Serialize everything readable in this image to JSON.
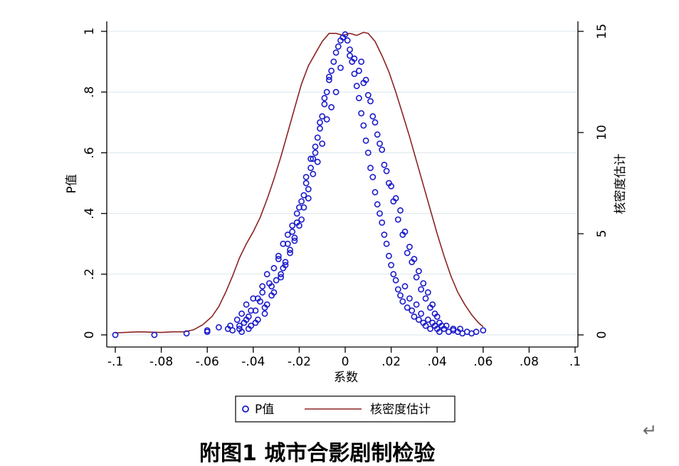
{
  "caption": "附图1  城市合影剧制检验",
  "return_mark": "↵",
  "chart_data": {
    "type": "scatter",
    "xlabel": "系数",
    "ylabel": "P值",
    "y2label": "核密度估计",
    "xlim": [
      -0.1,
      0.1
    ],
    "ylim": [
      0,
      1
    ],
    "y2lim": [
      0,
      15
    ],
    "x_ticks": [
      "-.1",
      "-.08",
      "-.06",
      "-.04",
      "-.02",
      "0",
      ".02",
      ".04",
      ".06",
      ".08",
      ".1"
    ],
    "y_ticks": [
      "0",
      ".2",
      ".4",
      ".6",
      ".8",
      "1"
    ],
    "y2_ticks": [
      "0",
      "5",
      "10",
      "15"
    ],
    "grid": true,
    "legend": {
      "position": "bottom",
      "entries": [
        "P值",
        "核密度估计"
      ]
    },
    "colors": {
      "scatter": "#1a1acc",
      "density": "#8b2323",
      "grid": "#dbe6ee"
    },
    "series": [
      {
        "name": "P值",
        "type": "scatter",
        "x": [
          -0.1,
          -0.083,
          -0.069,
          -0.06,
          -0.06,
          -0.055,
          -0.051,
          -0.05,
          -0.049,
          -0.047,
          -0.046,
          -0.045,
          -0.044,
          -0.043,
          -0.042,
          -0.041,
          -0.04,
          -0.039,
          -0.038,
          -0.037,
          -0.036,
          -0.035,
          -0.034,
          -0.033,
          -0.032,
          -0.031,
          -0.03,
          -0.029,
          -0.028,
          -0.027,
          -0.026,
          -0.025,
          -0.024,
          -0.023,
          -0.022,
          -0.021,
          -0.02,
          -0.019,
          -0.018,
          -0.017,
          -0.016,
          -0.015,
          -0.014,
          -0.013,
          -0.012,
          -0.011,
          -0.01,
          -0.009,
          -0.008,
          -0.007,
          -0.006,
          -0.005,
          -0.004,
          -0.003,
          -0.002,
          -0.001,
          0.0,
          0.001,
          0.002,
          0.003,
          0.004,
          0.005,
          0.006,
          0.007,
          0.008,
          0.009,
          0.01,
          0.011,
          0.012,
          0.013,
          0.014,
          0.015,
          0.016,
          0.017,
          0.018,
          0.019,
          0.02,
          0.021,
          0.022,
          0.023,
          0.024,
          0.025,
          0.026,
          0.027,
          0.028,
          0.029,
          0.03,
          0.031,
          0.032,
          0.033,
          0.034,
          0.035,
          0.036,
          0.037,
          0.038,
          0.039,
          0.04,
          0.041,
          0.043,
          0.045,
          0.047,
          0.049,
          0.051,
          0.053,
          0.055,
          0.057,
          0.06,
          -0.046,
          -0.043,
          -0.041,
          -0.038,
          -0.036,
          -0.034,
          -0.032,
          -0.029,
          -0.027,
          -0.025,
          -0.023,
          -0.021,
          -0.019,
          -0.017,
          -0.015,
          -0.013,
          -0.011,
          -0.009,
          -0.007,
          0.007,
          0.009,
          0.011,
          0.013,
          0.015,
          0.017,
          0.019,
          0.021,
          0.023,
          0.025,
          0.027,
          0.029,
          0.031,
          0.033,
          0.035,
          0.037,
          0.039,
          0.041,
          0.044,
          0.047,
          0.05,
          -0.045,
          -0.042,
          -0.039,
          -0.035,
          -0.031,
          -0.028,
          -0.026,
          -0.024,
          -0.022,
          -0.02,
          -0.018,
          -0.016,
          -0.014,
          -0.012,
          -0.01,
          -0.008,
          -0.006,
          -0.004,
          -0.002,
          0.002,
          0.004,
          0.006,
          0.008,
          0.01,
          0.012,
          0.014,
          0.016,
          0.018,
          0.02,
          0.022,
          0.024,
          0.026,
          0.028,
          0.03,
          0.032,
          0.034,
          0.036,
          0.038,
          0.04,
          0.042
        ],
        "y": [
          0.0,
          0.0,
          0.005,
          0.01,
          0.015,
          0.025,
          0.02,
          0.03,
          0.015,
          0.05,
          0.02,
          0.07,
          0.04,
          0.1,
          0.06,
          0.03,
          0.12,
          0.08,
          0.05,
          0.11,
          0.14,
          0.07,
          0.1,
          0.17,
          0.13,
          0.22,
          0.18,
          0.25,
          0.2,
          0.3,
          0.24,
          0.33,
          0.28,
          0.36,
          0.31,
          0.4,
          0.42,
          0.38,
          0.46,
          0.5,
          0.48,
          0.55,
          0.58,
          0.6,
          0.65,
          0.68,
          0.72,
          0.76,
          0.8,
          0.84,
          0.87,
          0.9,
          0.93,
          0.95,
          0.97,
          0.98,
          0.99,
          0.97,
          0.94,
          0.9,
          0.86,
          0.82,
          0.78,
          0.73,
          0.69,
          0.64,
          0.6,
          0.55,
          0.52,
          0.47,
          0.43,
          0.4,
          0.37,
          0.33,
          0.3,
          0.26,
          0.23,
          0.2,
          0.18,
          0.15,
          0.13,
          0.11,
          0.16,
          0.09,
          0.12,
          0.08,
          0.06,
          0.1,
          0.05,
          0.07,
          0.04,
          0.03,
          0.05,
          0.02,
          0.04,
          0.03,
          0.02,
          0.01,
          0.02,
          0.01,
          0.015,
          0.01,
          0.005,
          0.01,
          0.005,
          0.01,
          0.015,
          0.03,
          0.05,
          0.08,
          0.12,
          0.16,
          0.2,
          0.16,
          0.26,
          0.22,
          0.3,
          0.34,
          0.37,
          0.44,
          0.52,
          0.58,
          0.62,
          0.7,
          0.78,
          0.85,
          0.9,
          0.84,
          0.77,
          0.7,
          0.63,
          0.56,
          0.5,
          0.44,
          0.38,
          0.33,
          0.27,
          0.24,
          0.19,
          0.15,
          0.12,
          0.09,
          0.07,
          0.04,
          0.03,
          0.02,
          0.02,
          0.01,
          0.02,
          0.04,
          0.09,
          0.14,
          0.19,
          0.23,
          0.27,
          0.32,
          0.36,
          0.42,
          0.45,
          0.53,
          0.57,
          0.63,
          0.71,
          0.75,
          0.8,
          0.88,
          0.92,
          0.91,
          0.87,
          0.83,
          0.79,
          0.72,
          0.66,
          0.61,
          0.54,
          0.49,
          0.45,
          0.41,
          0.34,
          0.29,
          0.25,
          0.21,
          0.17,
          0.14,
          0.1,
          0.06,
          0.03
        ]
      },
      {
        "name": "核密度估计",
        "type": "line",
        "x": [
          -0.1,
          -0.09,
          -0.08,
          -0.075,
          -0.07,
          -0.066,
          -0.062,
          -0.058,
          -0.055,
          -0.052,
          -0.049,
          -0.046,
          -0.043,
          -0.04,
          -0.037,
          -0.034,
          -0.031,
          -0.028,
          -0.025,
          -0.022,
          -0.019,
          -0.016,
          -0.013,
          -0.01,
          -0.007,
          -0.004,
          -0.001,
          0.002,
          0.005,
          0.008,
          0.01,
          0.013,
          0.016,
          0.019,
          0.022,
          0.025,
          0.028,
          0.031,
          0.034,
          0.037,
          0.04,
          0.043,
          0.046,
          0.049,
          0.052,
          0.055,
          0.058,
          0.06
        ],
        "y": [
          0.1,
          0.15,
          0.12,
          0.15,
          0.15,
          0.25,
          0.5,
          0.9,
          1.4,
          2.1,
          2.9,
          3.8,
          4.5,
          5.1,
          5.8,
          6.7,
          7.7,
          8.8,
          10.0,
          11.2,
          12.4,
          13.3,
          13.9,
          14.5,
          14.9,
          14.9,
          14.8,
          14.9,
          14.8,
          14.95,
          14.9,
          14.5,
          13.8,
          13.0,
          12.0,
          10.9,
          9.8,
          8.6,
          7.4,
          6.2,
          5.0,
          3.9,
          2.9,
          2.1,
          1.5,
          1.0,
          0.6,
          0.4
        ]
      }
    ]
  }
}
